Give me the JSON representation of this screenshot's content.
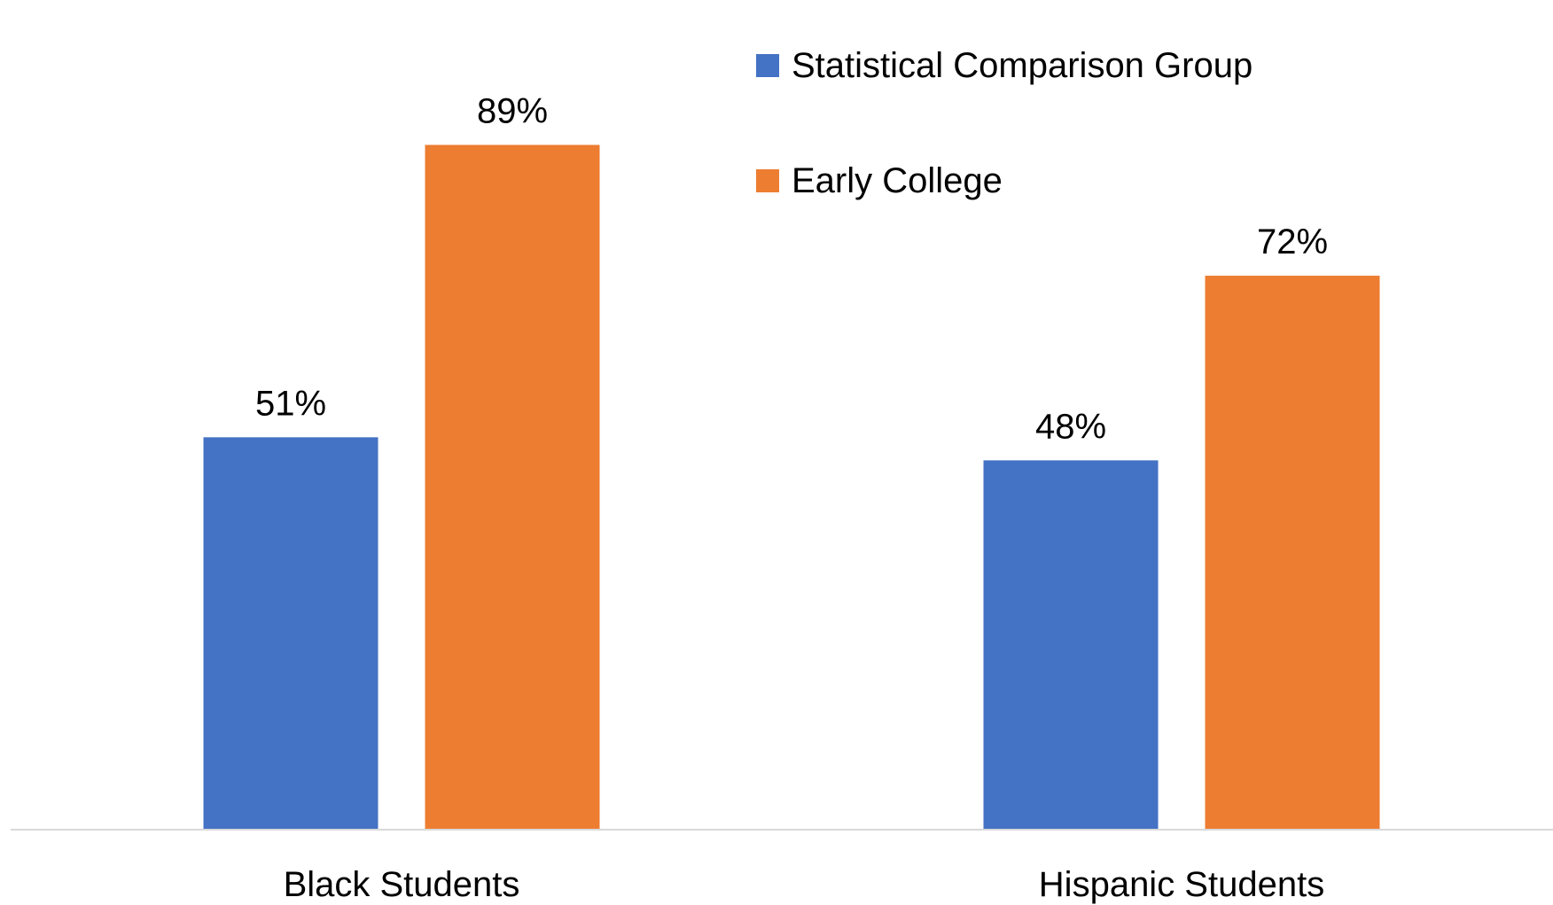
{
  "chart_data": {
    "type": "bar",
    "categories": [
      "Black Students",
      "Hispanic Students"
    ],
    "series": [
      {
        "name": "Statistical Comparison Group",
        "values": [
          51,
          48
        ],
        "labels": [
          "51%",
          "48%"
        ],
        "color": "#4472C4"
      },
      {
        "name": "Early College",
        "values": [
          89,
          72
        ],
        "labels": [
          "89%",
          "72%"
        ],
        "color": "#ED7D31"
      }
    ],
    "ylim": [
      0,
      100
    ],
    "unit": "%",
    "grid": false,
    "legend_position": "top-right",
    "axis_color": "#D9D9D9"
  }
}
